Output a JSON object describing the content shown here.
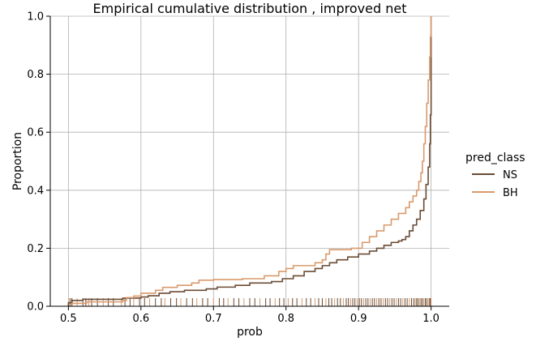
{
  "chart_data": {
    "type": "line",
    "title": "Empirical cumulative distribution , improved net",
    "xlabel": "prob",
    "ylabel": "Proportion",
    "xlim": [
      0.475,
      1.025
    ],
    "ylim": [
      0.0,
      1.0
    ],
    "xticks": [
      "0.5",
      "0.6",
      "0.7",
      "0.8",
      "0.9",
      "1.0"
    ],
    "yticks": [
      "0.0",
      "0.2",
      "0.4",
      "0.6",
      "0.8",
      "1.0"
    ],
    "grid": true,
    "legend": {
      "title": "pred_class",
      "placement": "right"
    },
    "series": [
      {
        "name": "NS",
        "color": "#6b4c35",
        "points": [
          [
            0.5,
            0.0
          ],
          [
            0.5,
            0.012
          ],
          [
            0.505,
            0.012
          ],
          [
            0.505,
            0.02
          ],
          [
            0.52,
            0.02
          ],
          [
            0.52,
            0.024
          ],
          [
            0.56,
            0.024
          ],
          [
            0.575,
            0.028
          ],
          [
            0.6,
            0.032
          ],
          [
            0.61,
            0.036
          ],
          [
            0.625,
            0.045
          ],
          [
            0.64,
            0.05
          ],
          [
            0.66,
            0.055
          ],
          [
            0.69,
            0.06
          ],
          [
            0.705,
            0.066
          ],
          [
            0.73,
            0.072
          ],
          [
            0.75,
            0.08
          ],
          [
            0.78,
            0.085
          ],
          [
            0.795,
            0.095
          ],
          [
            0.81,
            0.105
          ],
          [
            0.825,
            0.12
          ],
          [
            0.84,
            0.13
          ],
          [
            0.85,
            0.14
          ],
          [
            0.86,
            0.15
          ],
          [
            0.87,
            0.16
          ],
          [
            0.885,
            0.17
          ],
          [
            0.9,
            0.18
          ],
          [
            0.915,
            0.19
          ],
          [
            0.925,
            0.2
          ],
          [
            0.935,
            0.21
          ],
          [
            0.945,
            0.22
          ],
          [
            0.955,
            0.225
          ],
          [
            0.96,
            0.23
          ],
          [
            0.965,
            0.24
          ],
          [
            0.97,
            0.26
          ],
          [
            0.975,
            0.28
          ],
          [
            0.98,
            0.3
          ],
          [
            0.985,
            0.33
          ],
          [
            0.99,
            0.37
          ],
          [
            0.993,
            0.42
          ],
          [
            0.996,
            0.48
          ],
          [
            0.998,
            0.56
          ],
          [
            0.999,
            0.66
          ],
          [
            1.0,
            0.8
          ],
          [
            1.0,
            1.0
          ]
        ]
      },
      {
        "name": "BH",
        "color": "#d99a6c",
        "points": [
          [
            0.505,
            0.0
          ],
          [
            0.505,
            0.01
          ],
          [
            0.525,
            0.01
          ],
          [
            0.525,
            0.015
          ],
          [
            0.55,
            0.015
          ],
          [
            0.575,
            0.02
          ],
          [
            0.58,
            0.03
          ],
          [
            0.59,
            0.035
          ],
          [
            0.6,
            0.045
          ],
          [
            0.62,
            0.055
          ],
          [
            0.63,
            0.065
          ],
          [
            0.65,
            0.072
          ],
          [
            0.67,
            0.08
          ],
          [
            0.68,
            0.09
          ],
          [
            0.7,
            0.092
          ],
          [
            0.74,
            0.095
          ],
          [
            0.77,
            0.105
          ],
          [
            0.79,
            0.12
          ],
          [
            0.8,
            0.13
          ],
          [
            0.81,
            0.14
          ],
          [
            0.84,
            0.15
          ],
          [
            0.85,
            0.16
          ],
          [
            0.855,
            0.18
          ],
          [
            0.86,
            0.195
          ],
          [
            0.89,
            0.2
          ],
          [
            0.905,
            0.22
          ],
          [
            0.915,
            0.24
          ],
          [
            0.925,
            0.26
          ],
          [
            0.935,
            0.28
          ],
          [
            0.945,
            0.3
          ],
          [
            0.955,
            0.32
          ],
          [
            0.965,
            0.34
          ],
          [
            0.97,
            0.36
          ],
          [
            0.975,
            0.38
          ],
          [
            0.98,
            0.4
          ],
          [
            0.983,
            0.43
          ],
          [
            0.986,
            0.46
          ],
          [
            0.988,
            0.5
          ],
          [
            0.99,
            0.56
          ],
          [
            0.992,
            0.62
          ],
          [
            0.994,
            0.7
          ],
          [
            0.996,
            0.78
          ],
          [
            0.998,
            0.86
          ],
          [
            0.999,
            0.93
          ],
          [
            1.0,
            1.0
          ]
        ]
      }
    ],
    "rug": [
      0.501,
      0.503,
      0.505,
      0.512,
      0.52,
      0.524,
      0.528,
      0.532,
      0.54,
      0.548,
      0.555,
      0.562,
      0.573,
      0.578,
      0.585,
      0.59,
      0.598,
      0.605,
      0.612,
      0.62,
      0.628,
      0.633,
      0.641,
      0.649,
      0.655,
      0.663,
      0.671,
      0.677,
      0.685,
      0.692,
      0.7,
      0.708,
      0.714,
      0.72,
      0.728,
      0.735,
      0.742,
      0.75,
      0.757,
      0.764,
      0.772,
      0.778,
      0.785,
      0.791,
      0.797,
      0.803,
      0.809,
      0.815,
      0.822,
      0.828,
      0.834,
      0.84,
      0.845,
      0.85,
      0.855,
      0.859,
      0.863,
      0.867,
      0.871,
      0.875,
      0.879,
      0.883,
      0.886,
      0.889,
      0.892,
      0.895,
      0.898,
      0.901,
      0.904,
      0.907,
      0.91,
      0.913,
      0.916,
      0.919,
      0.922,
      0.925,
      0.928,
      0.931,
      0.934,
      0.937,
      0.94,
      0.943,
      0.946,
      0.949,
      0.952,
      0.955,
      0.958,
      0.961,
      0.964,
      0.967,
      0.97,
      0.973,
      0.976,
      0.978,
      0.98,
      0.982,
      0.984,
      0.986,
      0.988,
      0.99,
      0.992,
      0.994,
      0.996,
      0.998,
      0.999,
      1.0
    ]
  }
}
